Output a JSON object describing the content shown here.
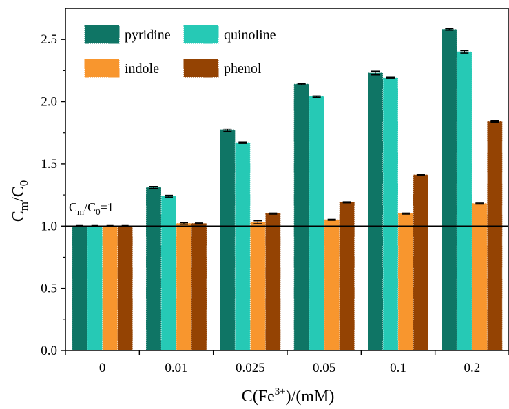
{
  "chart_data": {
    "type": "bar",
    "categories": [
      "0",
      "0.01",
      "0.025",
      "0.05",
      "0.1",
      "0.2"
    ],
    "series": [
      {
        "name": "pyridine",
        "color": "#0f7565",
        "values": [
          1.0,
          1.31,
          1.77,
          2.14,
          2.23,
          2.58
        ],
        "errors": [
          0.0,
          0.008,
          0.008,
          0.005,
          0.015,
          0.006
        ]
      },
      {
        "name": "quinoline",
        "color": "#26c9b5",
        "values": [
          1.0,
          1.24,
          1.67,
          2.04,
          2.19,
          2.4
        ],
        "errors": [
          0.0,
          0.007,
          0.005,
          0.005,
          0.005,
          0.01
        ]
      },
      {
        "name": "indole",
        "color": "#f8962e",
        "values": [
          1.0,
          1.02,
          1.03,
          1.05,
          1.1,
          1.18
        ],
        "errors": [
          0.0,
          0.006,
          0.012,
          0.004,
          0.004,
          0.004
        ]
      },
      {
        "name": "phenol",
        "color": "#944303",
        "values": [
          1.0,
          1.02,
          1.1,
          1.19,
          1.41,
          1.84
        ],
        "errors": [
          0.0,
          0.004,
          0.004,
          0.004,
          0.004,
          0.004
        ]
      }
    ],
    "xlabel": {
      "main": "C(Fe",
      "sup": "3+",
      "rest": ")/(mM)"
    },
    "ylabel": {
      "c1": "C",
      "sub1": "m",
      "slash": "/C",
      "sub2": "0"
    },
    "yticks": [
      "0.0",
      "0.5",
      "1.0",
      "1.5",
      "2.0",
      "2.5"
    ],
    "ylim": [
      0,
      2.75
    ],
    "reference_line": {
      "value": 1.0,
      "label_c1": "C",
      "label_sub1": "m",
      "label_mid": "/C",
      "label_sub2": "0",
      "label_end": "=1"
    },
    "legend": {
      "position": "top-left",
      "columns": 2
    },
    "grid": false
  }
}
